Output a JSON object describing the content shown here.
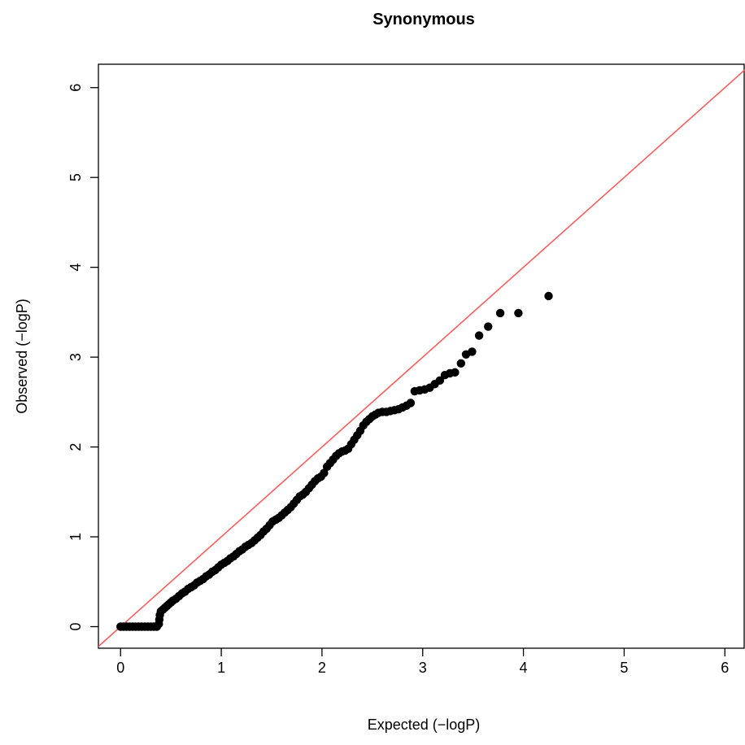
{
  "chart_data": {
    "type": "scatter",
    "title": "Synonymous",
    "xlabel": "Expected (−logP)",
    "ylabel": "Observed (−logP)",
    "xlim": [
      -0.22,
      6.2
    ],
    "ylim": [
      -0.24,
      6.26
    ],
    "xticks": [
      "0",
      "1",
      "2",
      "3",
      "4",
      "5",
      "6"
    ],
    "yticks": [
      "0",
      "1",
      "2",
      "3",
      "4",
      "5",
      "6"
    ],
    "grid": false,
    "legend": "none",
    "reference_line": {
      "slope": 1,
      "intercept": 0,
      "color": "#ff5555"
    },
    "point_color": "#000000",
    "points": [
      [
        0.0,
        0.0
      ],
      [
        0.03,
        0.0
      ],
      [
        0.06,
        0.0
      ],
      [
        0.09,
        0.0
      ],
      [
        0.12,
        0.0
      ],
      [
        0.15,
        0.0
      ],
      [
        0.18,
        0.0
      ],
      [
        0.21,
        0.0
      ],
      [
        0.24,
        0.0
      ],
      [
        0.27,
        0.0
      ],
      [
        0.3,
        0.0
      ],
      [
        0.33,
        0.0
      ],
      [
        0.36,
        0.0
      ],
      [
        0.38,
        0.03
      ],
      [
        0.385,
        0.08
      ],
      [
        0.39,
        0.13
      ],
      [
        0.4,
        0.17
      ],
      [
        0.42,
        0.19
      ],
      [
        0.44,
        0.21
      ],
      [
        0.46,
        0.23
      ],
      [
        0.48,
        0.25
      ],
      [
        0.5,
        0.27
      ],
      [
        0.52,
        0.29
      ],
      [
        0.55,
        0.31
      ],
      [
        0.58,
        0.34
      ],
      [
        0.61,
        0.37
      ],
      [
        0.64,
        0.39
      ],
      [
        0.67,
        0.42
      ],
      [
        0.7,
        0.44
      ],
      [
        0.73,
        0.46
      ],
      [
        0.76,
        0.49
      ],
      [
        0.79,
        0.51
      ],
      [
        0.82,
        0.53
      ],
      [
        0.85,
        0.56
      ],
      [
        0.88,
        0.58
      ],
      [
        0.91,
        0.61
      ],
      [
        0.94,
        0.63
      ],
      [
        0.97,
        0.66
      ],
      [
        1.0,
        0.69
      ],
      [
        1.03,
        0.71
      ],
      [
        1.06,
        0.73
      ],
      [
        1.09,
        0.76
      ],
      [
        1.12,
        0.78
      ],
      [
        1.15,
        0.81
      ],
      [
        1.18,
        0.84
      ],
      [
        1.21,
        0.86
      ],
      [
        1.24,
        0.89
      ],
      [
        1.27,
        0.91
      ],
      [
        1.3,
        0.93
      ],
      [
        1.33,
        0.96
      ],
      [
        1.36,
        0.99
      ],
      [
        1.39,
        1.02
      ],
      [
        1.42,
        1.06
      ],
      [
        1.45,
        1.09
      ],
      [
        1.48,
        1.13
      ],
      [
        1.51,
        1.17
      ],
      [
        1.54,
        1.19
      ],
      [
        1.57,
        1.21
      ],
      [
        1.6,
        1.24
      ],
      [
        1.63,
        1.27
      ],
      [
        1.66,
        1.3
      ],
      [
        1.69,
        1.33
      ],
      [
        1.72,
        1.37
      ],
      [
        1.75,
        1.41
      ],
      [
        1.78,
        1.45
      ],
      [
        1.81,
        1.47
      ],
      [
        1.84,
        1.5
      ],
      [
        1.87,
        1.54
      ],
      [
        1.9,
        1.58
      ],
      [
        1.93,
        1.62
      ],
      [
        1.96,
        1.65
      ],
      [
        1.99,
        1.67
      ],
      [
        2.02,
        1.71
      ],
      [
        2.05,
        1.78
      ],
      [
        2.08,
        1.82
      ],
      [
        2.11,
        1.86
      ],
      [
        2.14,
        1.9
      ],
      [
        2.17,
        1.93
      ],
      [
        2.2,
        1.95
      ],
      [
        2.23,
        1.96
      ],
      [
        2.26,
        1.98
      ],
      [
        2.29,
        2.03
      ],
      [
        2.32,
        2.08
      ],
      [
        2.35,
        2.13
      ],
      [
        2.38,
        2.18
      ],
      [
        2.41,
        2.24
      ],
      [
        2.44,
        2.28
      ],
      [
        2.47,
        2.31
      ],
      [
        2.5,
        2.34
      ],
      [
        2.53,
        2.36
      ],
      [
        2.56,
        2.38
      ],
      [
        2.6,
        2.39
      ],
      [
        2.64,
        2.39
      ],
      [
        2.68,
        2.4
      ],
      [
        2.72,
        2.41
      ],
      [
        2.76,
        2.42
      ],
      [
        2.8,
        2.44
      ],
      [
        2.84,
        2.46
      ],
      [
        2.88,
        2.49
      ],
      [
        2.92,
        2.62
      ],
      [
        2.97,
        2.63
      ],
      [
        3.02,
        2.64
      ],
      [
        3.07,
        2.66
      ],
      [
        3.12,
        2.7
      ],
      [
        3.17,
        2.74
      ],
      [
        3.22,
        2.8
      ],
      [
        3.27,
        2.82
      ],
      [
        3.32,
        2.83
      ],
      [
        3.38,
        2.93
      ],
      [
        3.43,
        3.03
      ],
      [
        3.49,
        3.06
      ],
      [
        3.56,
        3.24
      ],
      [
        3.65,
        3.34
      ],
      [
        3.77,
        3.49
      ],
      [
        3.95,
        3.49
      ],
      [
        4.25,
        3.68
      ]
    ]
  }
}
